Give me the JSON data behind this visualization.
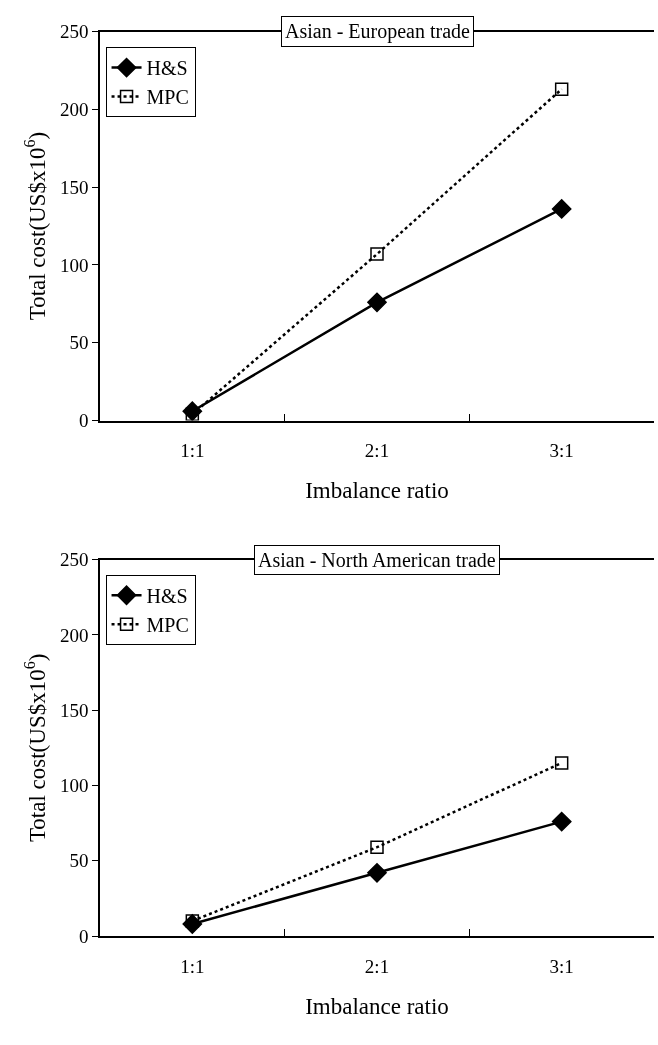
{
  "chart_data": [
    {
      "type": "line",
      "title": "Asian - European trade",
      "xlabel": "Imbalance ratio",
      "ylabel": "Total cost(US$x10$^{6}$)",
      "categories": [
        "1:1",
        "2:1",
        "3:1"
      ],
      "ylim": [
        0,
        250
      ],
      "yticks": [
        0,
        50,
        100,
        150,
        200,
        250
      ],
      "legend": "top left",
      "series": [
        {
          "name": "H&S",
          "color": "#000000",
          "marker": "diamond",
          "line_style": "solid",
          "values": [
            6,
            76,
            136
          ]
        },
        {
          "name": "MPC",
          "color": "#000000",
          "marker": "square",
          "line_style": "dotted",
          "values": [
            4,
            107,
            213
          ]
        }
      ]
    },
    {
      "type": "line",
      "title": "Asian - North American trade",
      "xlabel": "Imbalance ratio",
      "ylabel": "Total cost(US$x10$^{6}$)",
      "categories": [
        "1:1",
        "2:1",
        "3:1"
      ],
      "ylim": [
        0,
        250
      ],
      "yticks": [
        0,
        50,
        100,
        150,
        200,
        250
      ],
      "legend": "top left",
      "series": [
        {
          "name": "H&S",
          "color": "#000000",
          "marker": "diamond",
          "line_style": "solid",
          "values": [
            8,
            42,
            76
          ]
        },
        {
          "name": "MPC",
          "color": "#000000",
          "marker": "square",
          "line_style": "dotted",
          "values": [
            10,
            59,
            115
          ]
        }
      ]
    }
  ]
}
